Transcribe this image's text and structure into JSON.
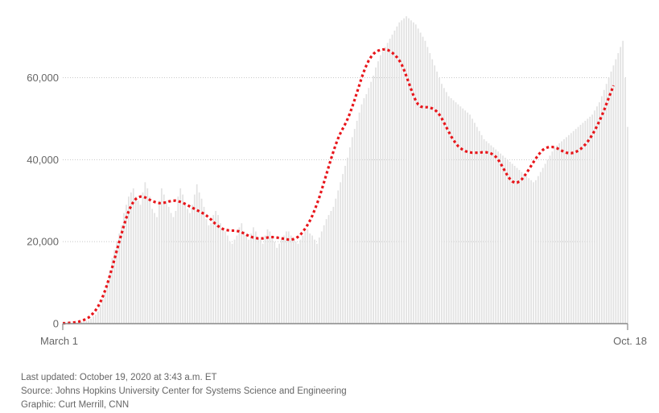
{
  "chart_data": {
    "type": "bar",
    "title": "",
    "xlabel": "",
    "ylabel": "",
    "ylim": [
      0,
      77000
    ],
    "grid": true,
    "yticks": [
      0,
      20000,
      40000,
      60000
    ],
    "ytick_labels": [
      "0",
      "20,000",
      "40,000",
      "60,000"
    ],
    "xtick_labels": [
      "March 1",
      "Oct. 18"
    ],
    "x_start": "2020-03-01",
    "x_end": "2020-10-18",
    "series": [
      {
        "type": "bar",
        "values": [
          30,
          40,
          60,
          80,
          100,
          200,
          300,
          350,
          400,
          500,
          700,
          800,
          1200,
          1800,
          2200,
          3000,
          4500,
          6000,
          8000,
          10000,
          13000,
          16000,
          18000,
          20000,
          22000,
          24000,
          27000,
          29000,
          31000,
          32000,
          33000,
          31000,
          30000,
          29000,
          32000,
          34500,
          33000,
          31000,
          28000,
          27000,
          26000,
          30000,
          33000,
          31500,
          30000,
          28500,
          27000,
          26000,
          27500,
          31000,
          33000,
          31500,
          29500,
          28000,
          27000,
          29000,
          31500,
          34000,
          32000,
          30500,
          28500,
          25500,
          24000,
          24500,
          26500,
          27500,
          26500,
          24500,
          23000,
          22500,
          21500,
          20000,
          19500,
          20500,
          21500,
          23500,
          24500,
          22500,
          21500,
          20500,
          22000,
          23500,
          22500,
          21000,
          20500,
          19500,
          21500,
          23000,
          22500,
          21500,
          20000,
          18500,
          19500,
          20500,
          21500,
          22500,
          22500,
          21500,
          20500,
          20000,
          19500,
          20500,
          21500,
          22500,
          23000,
          22000,
          21500,
          20500,
          19500,
          21000,
          22500,
          24000,
          25500,
          26500,
          27500,
          28500,
          30500,
          32500,
          34500,
          36500,
          38500,
          40500,
          43000,
          45500,
          47500,
          49500,
          51500,
          53500,
          55000,
          56000,
          57500,
          59000,
          60500,
          62500,
          64000,
          65500,
          66500,
          67500,
          68500,
          69500,
          70500,
          71500,
          72500,
          73500,
          74000,
          74500,
          75000,
          74500,
          74000,
          73500,
          73000,
          72000,
          71000,
          70000,
          69000,
          67500,
          66000,
          64500,
          63000,
          61500,
          60000,
          58500,
          57500,
          56500,
          55500,
          55000,
          54500,
          54000,
          53500,
          53000,
          52500,
          52000,
          51500,
          51000,
          50000,
          49000,
          48000,
          47000,
          46000,
          45000,
          44500,
          44000,
          43500,
          43000,
          42500,
          42000,
          41500,
          41000,
          40500,
          40000,
          39500,
          39000,
          38500,
          38000,
          37500,
          37000,
          36500,
          36000,
          35500,
          35000,
          34500,
          35000,
          36000,
          37000,
          38000,
          39000,
          40000,
          41000,
          42000,
          43000,
          43500,
          44000,
          44500,
          45000,
          45500,
          46000,
          46500,
          47000,
          47500,
          48000,
          48500,
          49000,
          49500,
          50000,
          50500,
          51000,
          52000,
          53000,
          54000,
          55500,
          57000,
          58500,
          60000,
          61500,
          63000,
          64500,
          66000,
          67500,
          69000,
          60000,
          48000
        ],
        "note": ""
      },
      {
        "type": "line",
        "values": [
          100,
          100,
          150,
          200,
          250,
          300,
          400,
          500,
          700,
          900,
          1200,
          1500,
          2000,
          2600,
          3300,
          4200,
          5300,
          6600,
          8100,
          9800,
          11700,
          13700,
          15800,
          17900,
          20000,
          22000,
          24000,
          25800,
          27400,
          28700,
          29700,
          30400,
          30800,
          31000,
          31000,
          30800,
          30500,
          30200,
          29900,
          29700,
          29500,
          29400,
          29400,
          29500,
          29600,
          29800,
          29900,
          30000,
          30000,
          29900,
          29700,
          29500,
          29200,
          28900,
          28600,
          28300,
          28000,
          27700,
          27400,
          27100,
          26800,
          26400,
          25900,
          25400,
          24800,
          24300,
          23800,
          23400,
          23100,
          22900,
          22800,
          22700,
          22700,
          22700,
          22600,
          22500,
          22300,
          22000,
          21700,
          21400,
          21200,
          21000,
          20900,
          20800,
          20800,
          20800,
          20900,
          21000,
          21100,
          21100,
          21100,
          21000,
          20900,
          20800,
          20700,
          20600,
          20500,
          20500,
          20600,
          20800,
          21200,
          21700,
          22400,
          23200,
          24100,
          25100,
          26300,
          27700,
          29200,
          30800,
          32600,
          34500,
          36400,
          38300,
          40200,
          42000,
          43700,
          45200,
          46500,
          47600,
          48700,
          49900,
          51300,
          52900,
          54600,
          56400,
          58200,
          60000,
          61600,
          63000,
          64200,
          65100,
          65800,
          66300,
          66600,
          66800,
          66900,
          66900,
          66800,
          66500,
          66100,
          65600,
          65000,
          64200,
          63200,
          61900,
          60400,
          58800,
          57200,
          55700,
          54400,
          53500,
          53000,
          52800,
          52800,
          52800,
          52700,
          52500,
          52200,
          51700,
          51000,
          50100,
          49000,
          47900,
          46800,
          45700,
          44800,
          44000,
          43300,
          42800,
          42400,
          42100,
          41900,
          41800,
          41700,
          41700,
          41700,
          41700,
          41800,
          41800,
          41800,
          41700,
          41500,
          41200,
          40700,
          40000,
          39100,
          38100,
          37100,
          36100,
          35300,
          34700,
          34400,
          34400,
          34700,
          35200,
          35900,
          36700,
          37600,
          38500,
          39400,
          40300,
          41100,
          41800,
          42400,
          42800,
          43000,
          43100,
          43100,
          43000,
          42800,
          42500,
          42200,
          41900,
          41700,
          41600,
          41600,
          41700,
          41900,
          42200,
          42600,
          43100,
          43700,
          44400,
          45200,
          46100,
          47100,
          48200,
          49400,
          50700,
          52100,
          53600,
          55100,
          56600,
          58100
        ]
      }
    ]
  },
  "footer": {
    "updated": "Last updated: October 19, 2020 at 3:43 a.m. ET",
    "source": "Source: Johns Hopkins University Center for Systems Science and Engineering",
    "graphic": "Graphic: Curt Merrill, CNN"
  },
  "colors": {
    "bar": "#e2e2e2",
    "average_line": "#e8161b",
    "grid": "#c8c8c8",
    "text": "#666666"
  }
}
